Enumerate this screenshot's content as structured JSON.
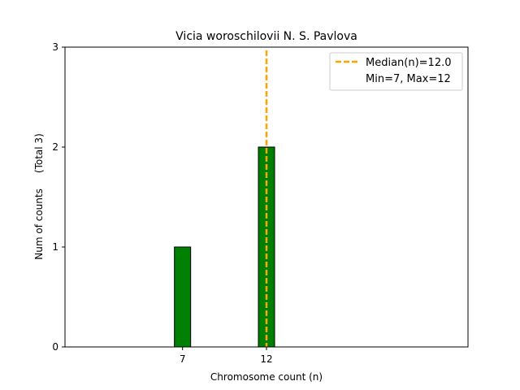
{
  "chart_data": {
    "type": "bar",
    "title": "Vicia woroschilovii N. S. Pavlova",
    "xlabel": "Chromosome count (n)",
    "ylabel": "Num of counts     (Total 3)",
    "x": [
      7,
      12
    ],
    "values": [
      1,
      2
    ],
    "xticks": [
      7,
      12
    ],
    "yticks": [
      0,
      1,
      2,
      3
    ],
    "xlim": [
      0,
      24
    ],
    "ylim": [
      0,
      3
    ],
    "bar_color": "#008000",
    "median": 12.0,
    "median_color": "#FFA500",
    "legend": {
      "position": "top-right",
      "entries": [
        "Median(n)=12.0",
        "Min=7, Max=12"
      ]
    }
  }
}
